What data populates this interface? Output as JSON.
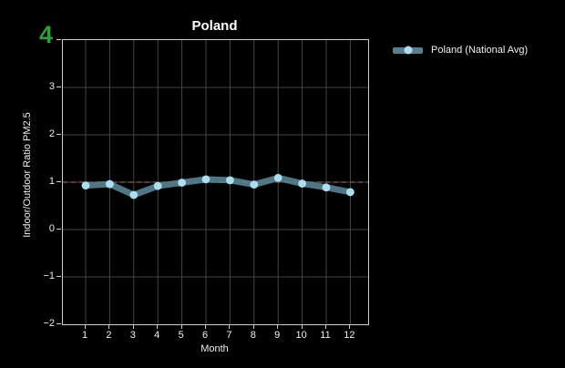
{
  "som": {
    "label": "4",
    "color": "#2f9e3d"
  },
  "top_clipped_label": "Month",
  "chart_data": {
    "type": "line",
    "title": "Poland",
    "xlabel": "Month",
    "ylabel": "Indoor/Outdoor Ratio PM2.5",
    "x": [
      1,
      2,
      3,
      4,
      5,
      6,
      7,
      8,
      9,
      10,
      11,
      12
    ],
    "xtick_labels": [
      "1",
      "2",
      "3",
      "4",
      "5",
      "6",
      "7",
      "8",
      "9",
      "10",
      "11",
      "12"
    ],
    "series": [
      {
        "name": "Poland (National Avg)",
        "values": [
          0.93,
          0.96,
          0.73,
          0.92,
          0.99,
          1.06,
          1.04,
          0.95,
          1.09,
          0.97,
          0.89,
          0.79
        ]
      }
    ],
    "ylim": [
      -2,
      4
    ],
    "yticks": [
      {
        "value": 4,
        "label": ""
      },
      {
        "value": 3,
        "label": "3"
      },
      {
        "value": 2,
        "label": "2"
      },
      {
        "value": 1,
        "label": "1"
      },
      {
        "value": 0,
        "label": "0"
      },
      {
        "value": -1,
        "label": "−1"
      },
      {
        "value": -2,
        "label": "−2"
      }
    ],
    "reference_line": {
      "y": 1,
      "style": "dashed",
      "color": "#7a4a4a"
    },
    "grid": true,
    "legend": {
      "position": "right",
      "entries": [
        "Poland (National Avg)"
      ]
    },
    "colors": {
      "line": "#55808f",
      "marker": "#aadff0",
      "background": "#000000",
      "grid": "#454545",
      "axis_border": "#cfcfcf",
      "text": "#efefef"
    }
  }
}
